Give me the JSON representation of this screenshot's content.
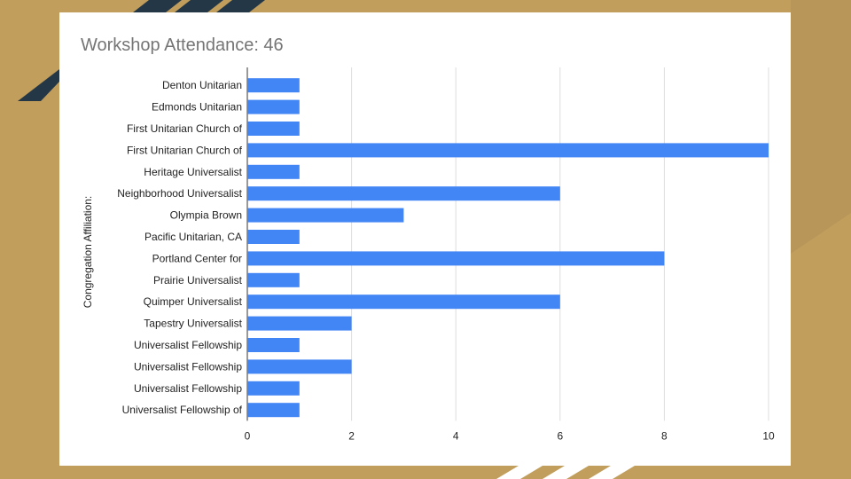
{
  "colors": {
    "background": "#c19e5c",
    "accent_dark": "#243746",
    "bar": "#4285f4",
    "card": "#ffffff"
  },
  "chart_data": {
    "type": "bar",
    "orientation": "horizontal",
    "title": "Workshop Attendance: 46",
    "xlabel": "",
    "ylabel": "Congregation Affiliation:",
    "xlim": [
      0,
      10
    ],
    "x_ticks": [
      0,
      2,
      4,
      6,
      8,
      10
    ],
    "grid": true,
    "categories": [
      "Denton Unitarian",
      "Edmonds Unitarian",
      "First Unitarian Church of",
      "First Unitarian Church of",
      "Heritage Universalist",
      "Neighborhood Universalist",
      "Olympia Brown",
      "Pacific Unitarian, CA",
      "Portland Center for",
      "Prairie Universalist",
      "Quimper Universalist",
      "Tapestry Universalist",
      "Universalist Fellowship",
      "Universalist Fellowship",
      "Universalist Fellowship",
      "Universalist Fellowship of"
    ],
    "values": [
      1,
      1,
      1,
      10,
      1,
      6,
      3,
      1,
      8,
      1,
      6,
      2,
      1,
      2,
      1,
      1
    ]
  }
}
